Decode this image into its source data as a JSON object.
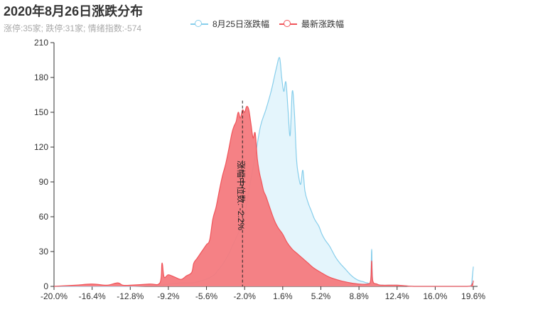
{
  "header": {
    "title": "2020年8月26日涨跌分布",
    "subtitle": "涨停:35家; 跌停:31家; 情绪指数:-574"
  },
  "colors": {
    "prev": "#87ceeb",
    "prev_fill": "#dbf1fb",
    "latest": "#f0545a",
    "latest_fill": "#f47a7e"
  },
  "chart_data": {
    "type": "area",
    "title": "2020年8月26日涨跌分布",
    "ylim": [
      0,
      210
    ],
    "xlim": [
      -20.0,
      20.0
    ],
    "yticks": [
      0,
      30,
      60,
      90,
      120,
      150,
      180,
      210
    ],
    "xticks": [
      -20.0,
      -16.4,
      -12.8,
      -9.2,
      -5.6,
      -2.0,
      1.6,
      5.2,
      8.8,
      12.4,
      16.0,
      19.6
    ],
    "xtick_labels": [
      "-20.0%",
      "-16.4%",
      "-12.8%",
      "-9.2%",
      "-5.6%",
      "-2.0%",
      "1.6%",
      "5.2%",
      "8.8%",
      "12.4%",
      "16.0%",
      "19.6%"
    ],
    "legend_position": "top-center",
    "median_line": {
      "x": -2.2,
      "label": "涨幅中位数: -2.2%"
    },
    "series": [
      {
        "name": "8月25日涨跌幅",
        "points": [
          [
            -20.0,
            0
          ],
          [
            -16.4,
            0
          ],
          [
            -12.8,
            0
          ],
          [
            -10.0,
            1
          ],
          [
            -9.2,
            2
          ],
          [
            -8.0,
            3
          ],
          [
            -7.0,
            3
          ],
          [
            -6.0,
            5
          ],
          [
            -5.0,
            9
          ],
          [
            -4.5,
            14
          ],
          [
            -4.0,
            20
          ],
          [
            -3.5,
            28
          ],
          [
            -3.0,
            38
          ],
          [
            -2.5,
            48
          ],
          [
            -2.0,
            62
          ],
          [
            -1.5,
            88
          ],
          [
            -1.0,
            112
          ],
          [
            -0.5,
            138
          ],
          [
            0.0,
            152
          ],
          [
            0.5,
            168
          ],
          [
            0.8,
            180
          ],
          [
            1.0,
            188
          ],
          [
            1.3,
            197
          ],
          [
            1.5,
            180
          ],
          [
            1.7,
            168
          ],
          [
            1.9,
            176
          ],
          [
            2.1,
            152
          ],
          [
            2.3,
            130
          ],
          [
            2.5,
            168
          ],
          [
            2.7,
            150
          ],
          [
            2.9,
            110
          ],
          [
            3.1,
            95
          ],
          [
            3.3,
            88
          ],
          [
            3.5,
            100
          ],
          [
            3.7,
            82
          ],
          [
            4.0,
            72
          ],
          [
            4.3,
            65
          ],
          [
            4.6,
            58
          ],
          [
            5.0,
            52
          ],
          [
            5.3,
            45
          ],
          [
            5.6,
            40
          ],
          [
            6.0,
            35
          ],
          [
            6.3,
            30
          ],
          [
            6.6,
            25
          ],
          [
            7.0,
            20
          ],
          [
            7.3,
            17
          ],
          [
            7.6,
            14
          ],
          [
            8.0,
            10
          ],
          [
            8.4,
            7
          ],
          [
            8.8,
            5
          ],
          [
            9.2,
            4
          ],
          [
            9.6,
            3
          ],
          [
            9.9,
            5
          ],
          [
            10.0,
            32
          ],
          [
            10.1,
            5
          ],
          [
            10.5,
            2
          ],
          [
            11.0,
            1
          ],
          [
            12.4,
            1
          ],
          [
            14.0,
            0
          ],
          [
            16.0,
            0
          ],
          [
            19.0,
            0
          ],
          [
            19.4,
            1
          ],
          [
            19.5,
            8
          ],
          [
            19.6,
            17
          ]
        ]
      },
      {
        "name": "最新涨跌幅",
        "points": [
          [
            -20.0,
            0
          ],
          [
            -18.0,
            1
          ],
          [
            -16.4,
            2
          ],
          [
            -15.0,
            1
          ],
          [
            -14.0,
            3
          ],
          [
            -13.5,
            1
          ],
          [
            -12.8,
            1
          ],
          [
            -11.0,
            2
          ],
          [
            -10.0,
            3
          ],
          [
            -9.8,
            20
          ],
          [
            -9.6,
            8
          ],
          [
            -9.2,
            10
          ],
          [
            -8.6,
            8
          ],
          [
            -8.0,
            6
          ],
          [
            -7.5,
            9
          ],
          [
            -7.0,
            12
          ],
          [
            -6.8,
            20
          ],
          [
            -6.5,
            24
          ],
          [
            -6.2,
            28
          ],
          [
            -5.9,
            32
          ],
          [
            -5.6,
            36
          ],
          [
            -5.3,
            40
          ],
          [
            -5.0,
            58
          ],
          [
            -4.7,
            68
          ],
          [
            -4.4,
            82
          ],
          [
            -4.1,
            95
          ],
          [
            -3.8,
            105
          ],
          [
            -3.5,
            118
          ],
          [
            -3.2,
            132
          ],
          [
            -3.0,
            138
          ],
          [
            -2.8,
            142
          ],
          [
            -2.6,
            150
          ],
          [
            -2.4,
            145
          ],
          [
            -2.2,
            152
          ],
          [
            -2.0,
            150
          ],
          [
            -1.8,
            155
          ],
          [
            -1.6,
            152
          ],
          [
            -1.4,
            140
          ],
          [
            -1.2,
            128
          ],
          [
            -1.0,
            132
          ],
          [
            -0.8,
            110
          ],
          [
            -0.6,
            98
          ],
          [
            -0.4,
            90
          ],
          [
            -0.2,
            82
          ],
          [
            0.0,
            78
          ],
          [
            0.3,
            70
          ],
          [
            0.6,
            62
          ],
          [
            0.9,
            55
          ],
          [
            1.2,
            50
          ],
          [
            1.6,
            45
          ],
          [
            2.0,
            38
          ],
          [
            2.5,
            32
          ],
          [
            3.0,
            28
          ],
          [
            3.5,
            24
          ],
          [
            4.0,
            20
          ],
          [
            4.5,
            16
          ],
          [
            5.2,
            12
          ],
          [
            6.0,
            8
          ],
          [
            7.0,
            5
          ],
          [
            8.0,
            3
          ],
          [
            8.8,
            2
          ],
          [
            9.6,
            2
          ],
          [
            9.9,
            5
          ],
          [
            10.0,
            22
          ],
          [
            10.1,
            5
          ],
          [
            10.5,
            2
          ],
          [
            11.0,
            1
          ],
          [
            12.4,
            1
          ],
          [
            14.0,
            0
          ],
          [
            16.0,
            0
          ],
          [
            19.0,
            0
          ],
          [
            19.5,
            2
          ],
          [
            19.6,
            5
          ]
        ]
      }
    ]
  }
}
